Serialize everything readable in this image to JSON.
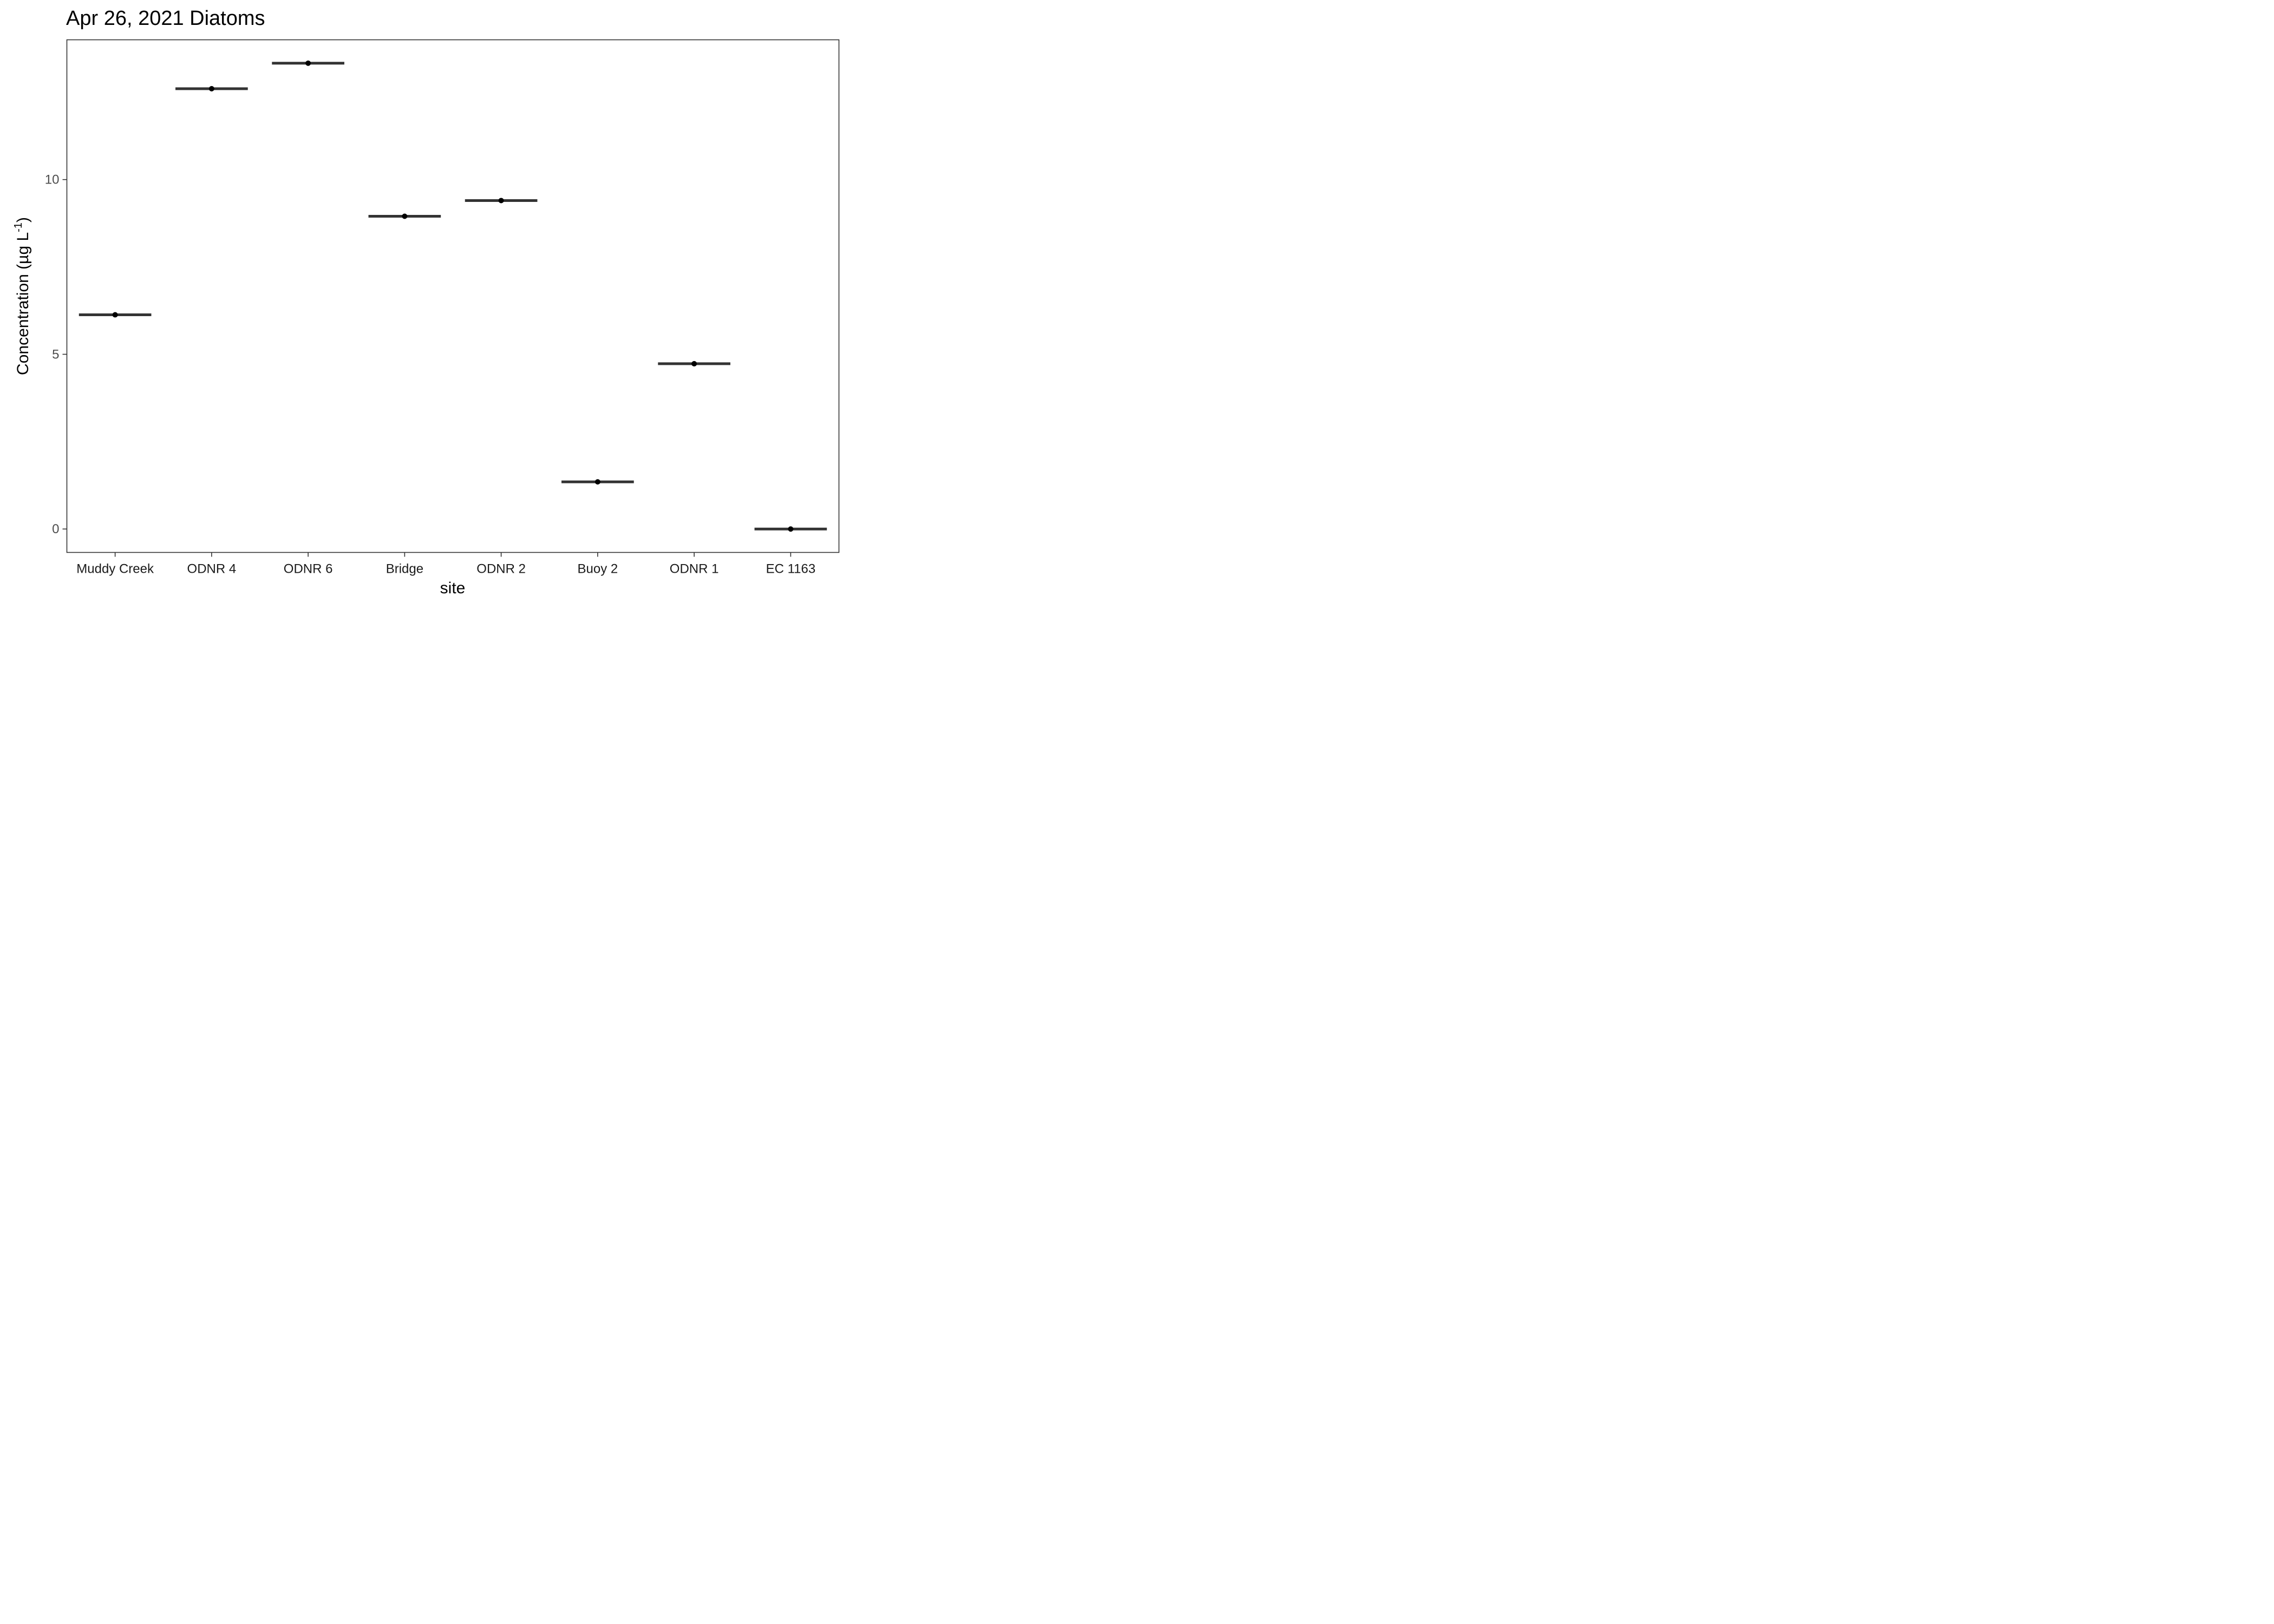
{
  "chart_data": {
    "type": "scatter",
    "title": "Apr 26, 2021 Diatoms",
    "xlabel": "site",
    "ylabel": {
      "main": "Concentration (µg L",
      "superscript": "-1",
      "close": ")"
    },
    "categories": [
      "Muddy Creek",
      "ODNR 4",
      "ODNR 6",
      "Bridge",
      "ODNR 2",
      "Buoy 2",
      "ODNR 1",
      "EC 1163"
    ],
    "values": [
      6.13,
      12.6,
      13.33,
      8.95,
      9.4,
      1.35,
      4.73,
      0.0
    ],
    "yticks": [
      "0",
      "5",
      "10"
    ],
    "ylim": [
      -0.67,
      14.0
    ],
    "grid": false,
    "legend": "none",
    "colors": {
      "point": "#000000",
      "median_bar": "#333333",
      "panel_border": "#333333",
      "axis_text": "#4d4d4d"
    }
  }
}
